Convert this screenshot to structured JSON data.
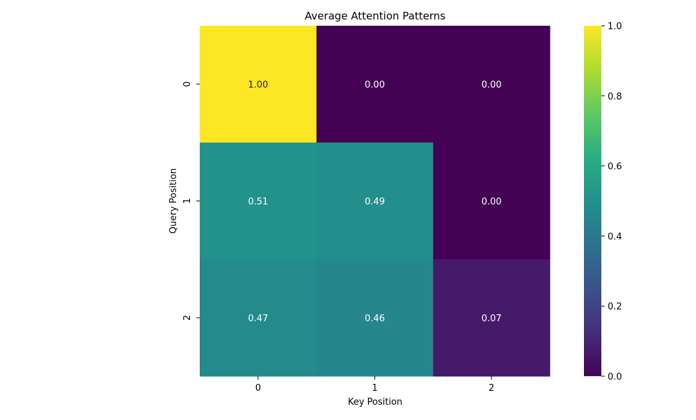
{
  "chart_data": {
    "type": "heatmap",
    "title": "Average Attention Patterns",
    "xlabel": "Key Position",
    "ylabel": "Query Position",
    "x_categories": [
      "0",
      "1",
      "2"
    ],
    "y_categories": [
      "0",
      "1",
      "2"
    ],
    "values": [
      [
        1.0,
        0.0,
        0.0
      ],
      [
        0.51,
        0.49,
        0.0
      ],
      [
        0.47,
        0.46,
        0.07
      ]
    ],
    "annotations": [
      [
        "1.00",
        "0.00",
        "0.00"
      ],
      [
        "0.51",
        "0.49",
        "0.00"
      ],
      [
        "0.47",
        "0.46",
        "0.07"
      ]
    ],
    "colormap": "viridis",
    "vmin": 0.0,
    "vmax": 1.0,
    "colorbar_ticks": [
      "0.0",
      "0.2",
      "0.4",
      "0.6",
      "0.8",
      "1.0"
    ],
    "colorbar_tick_values": [
      0.0,
      0.2,
      0.4,
      0.6,
      0.8,
      1.0
    ],
    "grid": false
  }
}
